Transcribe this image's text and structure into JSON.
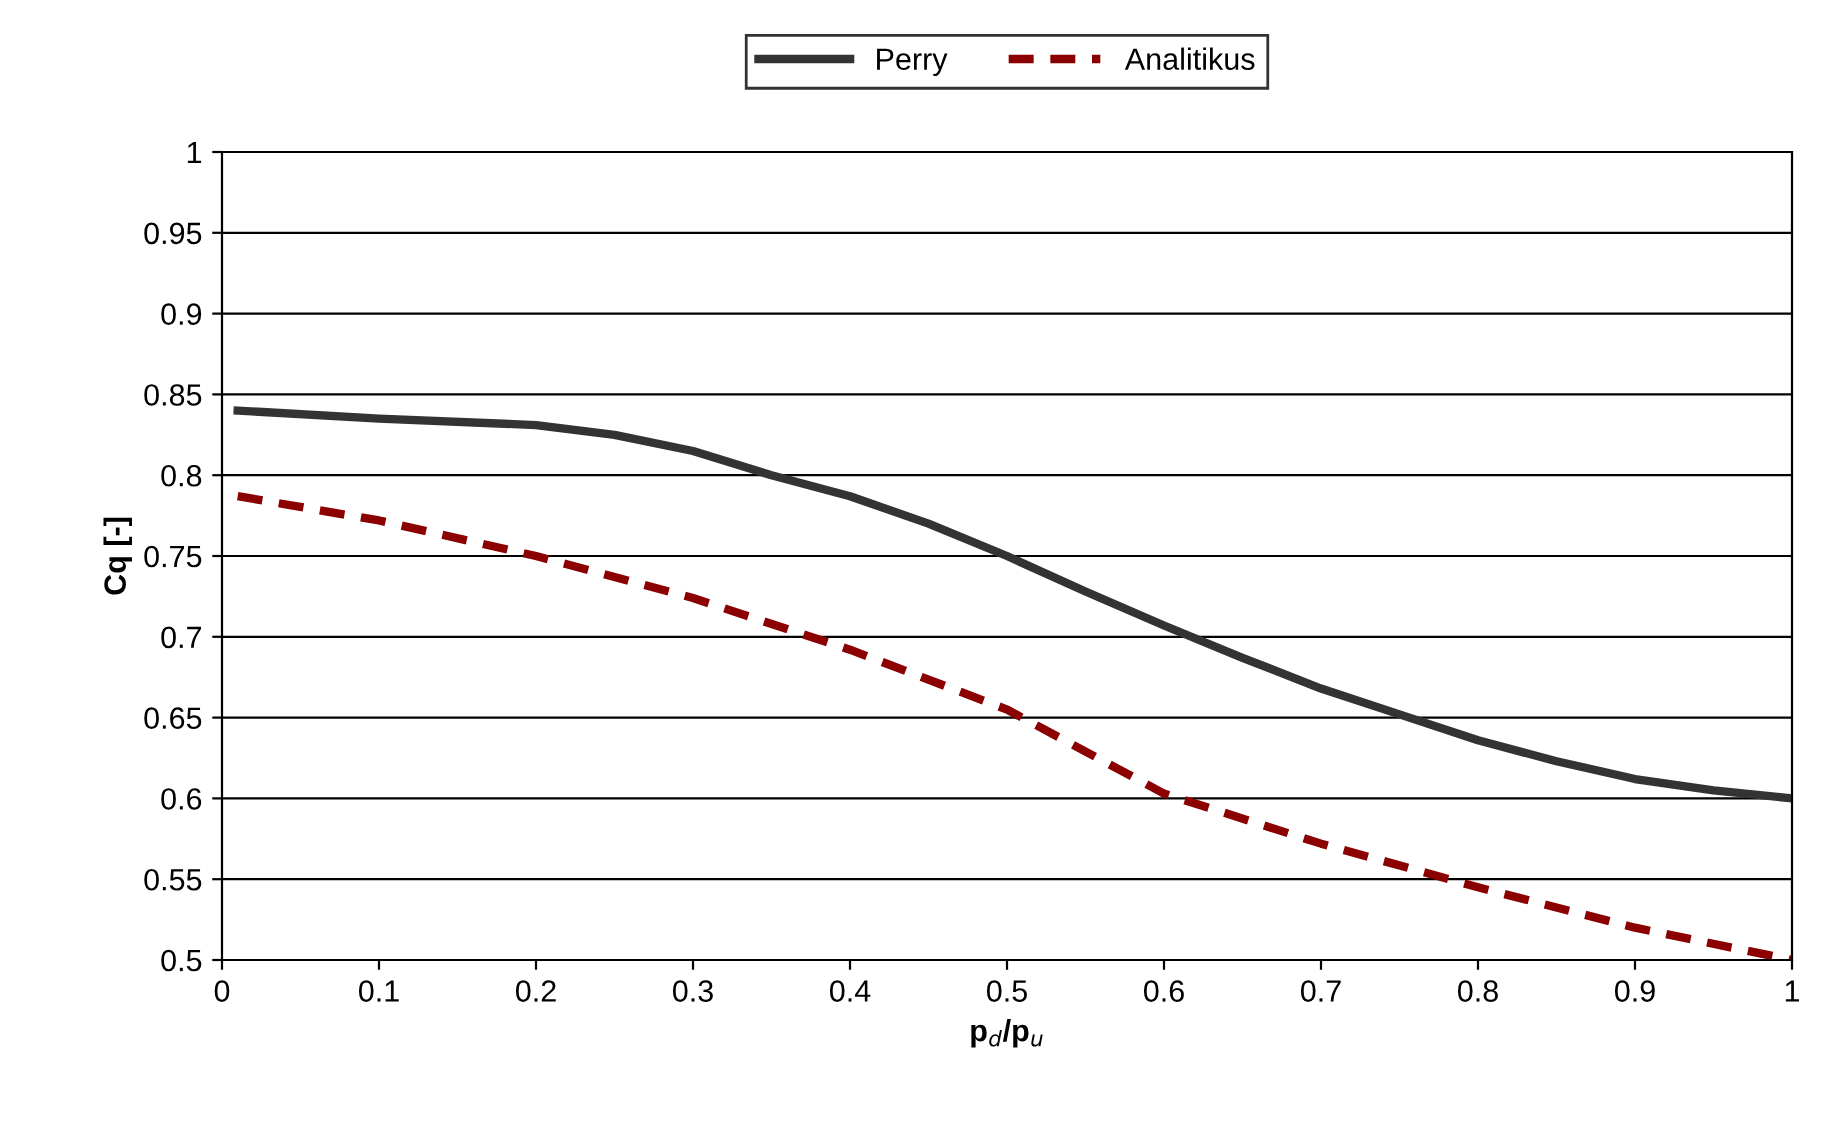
{
  "chart_data": {
    "type": "line",
    "xlabel": "p$_{d}$/p$_{u}$",
    "ylabel": "Cq [-]",
    "xlim": [
      0,
      1
    ],
    "xticks": [
      0,
      0.1,
      0.2,
      0.3,
      0.4,
      0.5,
      0.6,
      0.7,
      0.8,
      0.9,
      1
    ],
    "ylim": [
      0.5,
      1
    ],
    "yticks": [
      0.5,
      0.55,
      0.6,
      0.65,
      0.7,
      0.75,
      0.8,
      0.85,
      0.9,
      0.95,
      1
    ],
    "grid": "y",
    "legend": "top",
    "marker": "none",
    "series": [
      {
        "name": "Perry",
        "color": "#333333",
        "line_style": "solid",
        "x": [
          0.01,
          0.1,
          0.2,
          0.25,
          0.3,
          0.35,
          0.4,
          0.45,
          0.5,
          0.55,
          0.6,
          0.65,
          0.7,
          0.75,
          0.8,
          0.85,
          0.9,
          0.95,
          1.0
        ],
        "values": [
          0.84,
          0.835,
          0.831,
          0.825,
          0.815,
          0.8,
          0.787,
          0.77,
          0.75,
          0.728,
          0.707,
          0.687,
          0.668,
          0.652,
          0.636,
          0.623,
          0.612,
          0.605,
          0.6
        ]
      },
      {
        "name": "Analitikus",
        "color": "#8b0000",
        "line_style": "dashed",
        "x": [
          0.01,
          0.1,
          0.2,
          0.3,
          0.4,
          0.5,
          0.6,
          0.7,
          0.8,
          0.9,
          1.0
        ],
        "values": [
          0.787,
          0.772,
          0.75,
          0.724,
          0.692,
          0.655,
          0.603,
          0.572,
          0.545,
          0.52,
          0.5
        ]
      }
    ]
  }
}
